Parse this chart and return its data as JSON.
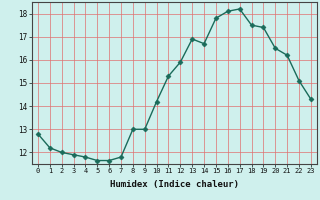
{
  "title": "",
  "xlabel": "Humidex (Indice chaleur)",
  "ylabel": "",
  "x_values": [
    0,
    1,
    2,
    3,
    4,
    5,
    6,
    7,
    8,
    9,
    10,
    11,
    12,
    13,
    14,
    15,
    16,
    17,
    18,
    19,
    20,
    21,
    22,
    23
  ],
  "y_values": [
    12.8,
    12.2,
    12.0,
    11.9,
    11.8,
    11.65,
    11.65,
    11.8,
    13.0,
    13.0,
    14.2,
    15.3,
    15.9,
    16.9,
    16.7,
    17.8,
    18.1,
    18.2,
    17.5,
    17.4,
    16.5,
    16.2,
    15.1,
    14.3
  ],
  "line_color": "#1a6b5a",
  "marker": "D",
  "marker_size": 2.5,
  "bg_color": "#cff0ed",
  "grid_color": "#e07070",
  "ylim": [
    11.5,
    18.5
  ],
  "xlim": [
    -0.5,
    23.5
  ],
  "yticks": [
    12,
    13,
    14,
    15,
    16,
    17,
    18
  ],
  "xticks": [
    0,
    1,
    2,
    3,
    4,
    5,
    6,
    7,
    8,
    9,
    10,
    11,
    12,
    13,
    14,
    15,
    16,
    17,
    18,
    19,
    20,
    21,
    22,
    23
  ]
}
